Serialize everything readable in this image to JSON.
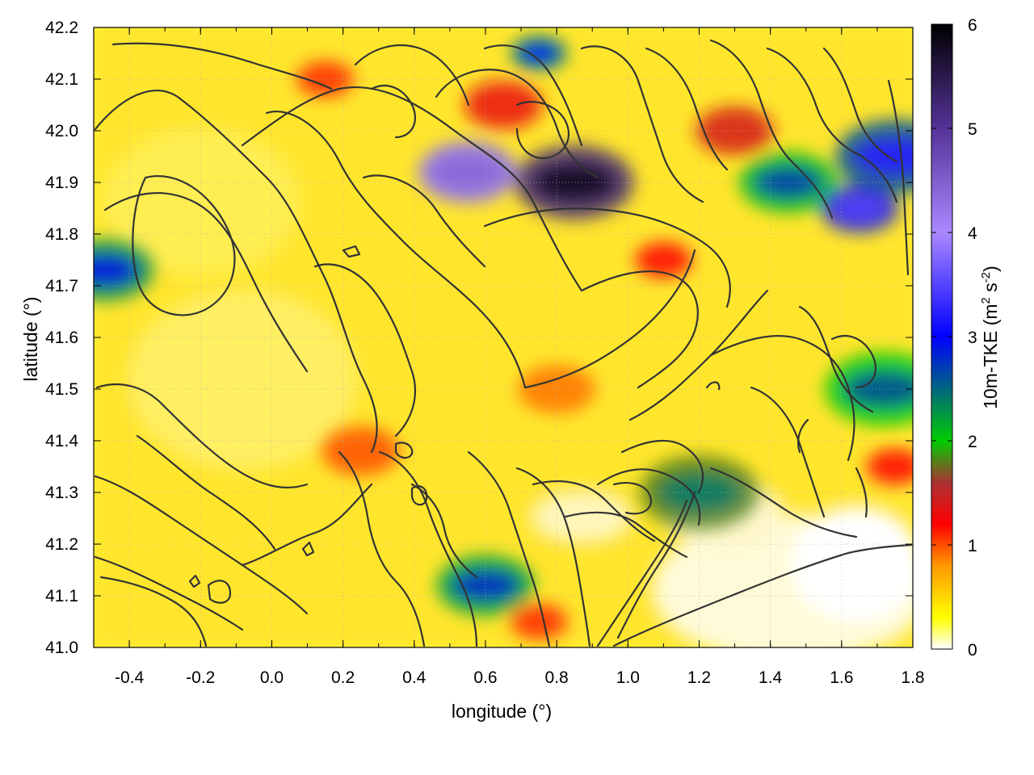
{
  "chart_data": {
    "type": "heatmap",
    "xlabel": "longitude (°)",
    "ylabel": "latitude (°)",
    "xlim": [
      -0.5,
      1.8
    ],
    "ylim": [
      41.0,
      42.2
    ],
    "x_ticks": [
      "-0.4",
      "-0.2",
      "0.0",
      "0.2",
      "0.4",
      "0.6",
      "0.8",
      "1.0",
      "1.2",
      "1.4",
      "1.6",
      "1.8"
    ],
    "x_tick_values": [
      -0.4,
      -0.2,
      0.0,
      0.2,
      0.4,
      0.6,
      0.8,
      1.0,
      1.2,
      1.4,
      1.6,
      1.8
    ],
    "y_ticks": [
      "41.0",
      "41.1",
      "41.2",
      "41.3",
      "41.4",
      "41.5",
      "41.6",
      "41.7",
      "41.8",
      "41.9",
      "42.0",
      "42.1",
      "42.2"
    ],
    "y_tick_values": [
      41.0,
      41.1,
      41.2,
      41.3,
      41.4,
      41.5,
      41.6,
      41.7,
      41.8,
      41.9,
      42.0,
      42.1,
      42.2
    ],
    "grid": true,
    "colorbar": {
      "label_main": "10m-TKE (m",
      "label_sup1": "2",
      "label_mid": " s",
      "label_sup2": "-2",
      "label_end": ")",
      "min": 0,
      "max": 6,
      "ticks": [
        "0",
        "1",
        "2",
        "3",
        "4",
        "5",
        "6"
      ],
      "tick_values": [
        0,
        1,
        2,
        3,
        4,
        5,
        6
      ],
      "colors": [
        {
          "value": 0.0,
          "color": "#ffffff"
        },
        {
          "value": 0.3,
          "color": "#ffff00"
        },
        {
          "value": 0.8,
          "color": "#ff9900"
        },
        {
          "value": 1.2,
          "color": "#ff0000"
        },
        {
          "value": 1.6,
          "color": "#aa3333"
        },
        {
          "value": 2.0,
          "color": "#00cc00"
        },
        {
          "value": 3.0,
          "color": "#0000ff"
        },
        {
          "value": 4.0,
          "color": "#aa88ff"
        },
        {
          "value": 5.0,
          "color": "#553399"
        },
        {
          "value": 6.0,
          "color": "#000000"
        }
      ]
    },
    "field_features": [
      {
        "lon": 0.15,
        "lat": 42.1,
        "tke": 1.1
      },
      {
        "lon": 0.65,
        "lat": 42.05,
        "tke": 1.3
      },
      {
        "lon": 0.55,
        "lat": 41.92,
        "tke": 3.8
      },
      {
        "lon": 0.85,
        "lat": 41.9,
        "tke": 5.2
      },
      {
        "lon": 0.75,
        "lat": 42.15,
        "tke": 2.4
      },
      {
        "lon": 1.3,
        "lat": 42.0,
        "tke": 1.4
      },
      {
        "lon": 1.45,
        "lat": 41.9,
        "tke": 2.1
      },
      {
        "lon": 1.75,
        "lat": 41.95,
        "tke": 2.6
      },
      {
        "lon": 1.1,
        "lat": 41.75,
        "tke": 1.2
      },
      {
        "lon": 1.65,
        "lat": 41.85,
        "tke": 2.9
      },
      {
        "lon": -0.47,
        "lat": 41.73,
        "tke": 2.3
      },
      {
        "lon": 1.72,
        "lat": 41.5,
        "tke": 2.0
      },
      {
        "lon": 1.75,
        "lat": 41.35,
        "tke": 1.2
      },
      {
        "lon": 0.25,
        "lat": 41.38,
        "tke": 1.0
      },
      {
        "lon": 0.6,
        "lat": 41.12,
        "tke": 2.2
      },
      {
        "lon": 1.2,
        "lat": 41.3,
        "tke": 1.8
      },
      {
        "lon": 0.75,
        "lat": 41.05,
        "tke": 1.1
      },
      {
        "lon": 0.8,
        "lat": 41.5,
        "tke": 0.9
      }
    ]
  }
}
